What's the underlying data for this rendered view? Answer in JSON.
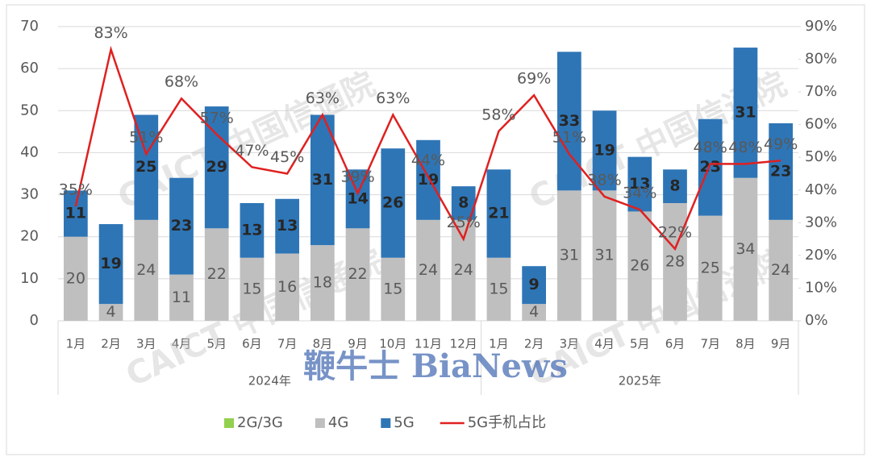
{
  "chart_data": {
    "type": "bar",
    "stacked": true,
    "groups": [
      {
        "label": "2024年",
        "categories": [
          "1月",
          "2月",
          "3月",
          "4月",
          "5月",
          "6月",
          "7月",
          "8月",
          "9月",
          "10月",
          "11月",
          "12月"
        ]
      },
      {
        "label": "2025年",
        "categories": [
          "1月",
          "2月",
          "3月",
          "4月",
          "5月",
          "6月",
          "7月",
          "8月",
          "9月"
        ]
      }
    ],
    "series": [
      {
        "name": "2G/3G",
        "color": "#92d050",
        "values": [
          0,
          0,
          0,
          0,
          0,
          0,
          0,
          0,
          0,
          0,
          0,
          0,
          0,
          0,
          0,
          0,
          0,
          0,
          0,
          0,
          0
        ]
      },
      {
        "name": "4G",
        "color": "#bfbfbf",
        "label_color": "#595959",
        "values": [
          20,
          4,
          24,
          11,
          22,
          15,
          16,
          18,
          22,
          15,
          24,
          24,
          15,
          4,
          31,
          31,
          26,
          28,
          25,
          34,
          24
        ]
      },
      {
        "name": "5G",
        "color": "#2e75b6",
        "label_color": "#262626",
        "values": [
          11,
          19,
          25,
          23,
          29,
          13,
          13,
          31,
          14,
          26,
          19,
          8,
          21,
          9,
          33,
          19,
          13,
          8,
          23,
          31,
          23
        ]
      },
      {
        "name": "5G手机占比",
        "type": "line",
        "axis": "y2",
        "color": "#e02020",
        "values": [
          35,
          83,
          51,
          68,
          57,
          47,
          45,
          63,
          39,
          63,
          44,
          25,
          58,
          69,
          51,
          38,
          34,
          22,
          48,
          48,
          49
        ],
        "value_labels": [
          "35%",
          "83%",
          "51%",
          "68%",
          "57%",
          "47%",
          "45%",
          "63%",
          "39%",
          "63%",
          "44%",
          "25%",
          "58%",
          "69%",
          "51%",
          "38%",
          "34%",
          "22%",
          "48%",
          "48%",
          "49%"
        ]
      }
    ],
    "ylim": [
      0,
      70
    ],
    "yticks": [
      0,
      10,
      20,
      30,
      40,
      50,
      60,
      70
    ],
    "y2lim": [
      0,
      90
    ],
    "y2ticks": [
      {
        "value": 0,
        "label": "0%"
      },
      {
        "value": 10,
        "label": "10%"
      },
      {
        "value": 20,
        "label": "20%"
      },
      {
        "value": 30,
        "label": "30%"
      },
      {
        "value": 40,
        "label": "40%"
      },
      {
        "value": 50,
        "label": "50%"
      },
      {
        "value": 60,
        "label": "60%"
      },
      {
        "value": 70,
        "label": "70%"
      },
      {
        "value": 80,
        "label": "80%"
      },
      {
        "value": 90,
        "label": "90%"
      }
    ],
    "grid": true,
    "legend": "bottom",
    "watermarks": [
      "CAICT 中国信通院",
      "鞭牛士 BiaNews"
    ]
  }
}
